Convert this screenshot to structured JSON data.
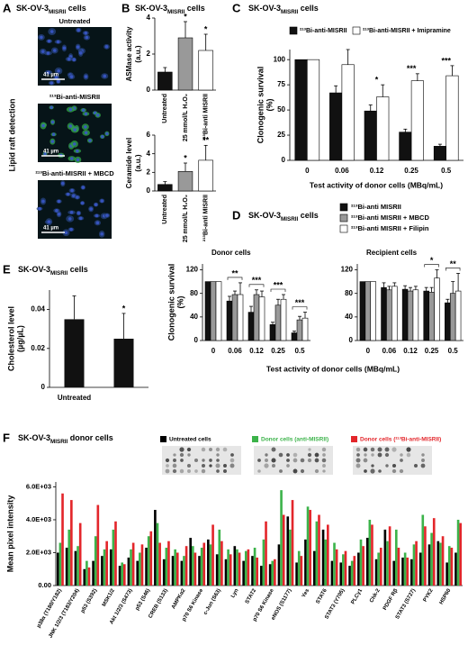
{
  "panels": [
    "A",
    "B",
    "C",
    "D",
    "E",
    "F"
  ],
  "panel_a": {
    "title": [
      {
        "text": "SK-OV-3"
      },
      {
        "text": "MISRII",
        "sub": true
      },
      {
        "text": " cells"
      }
    ],
    "side_label": "Lipid raft detection",
    "images": [
      {
        "label": "Untreated",
        "scale": "41 µm"
      },
      {
        "label": "²¹³Bi-anti-MISRII",
        "scale": "41 µm"
      },
      {
        "label": "²¹³Bi-anti-MISRII + MBCD",
        "scale": "41 µm"
      }
    ]
  },
  "chart_data": [
    {
      "type": "bar",
      "title": [
        {
          "text": "SK-OV-3"
        },
        {
          "text": "MISRII",
          "sub": true
        },
        {
          "text": " cells"
        }
      ],
      "ylabel": [
        "ASMase activity",
        "(a.u.)"
      ],
      "categories": [
        "Untreated",
        "25 mmol/L H₂O₂",
        "²¹³Bi-anti MISRII"
      ],
      "values": [
        1.0,
        2.9,
        2.2
      ],
      "errors": [
        0.25,
        0.9,
        0.9
      ],
      "colors": [
        "#111111",
        "#999999",
        "#ffffff"
      ],
      "ylim": [
        0,
        4
      ],
      "yticks": [
        0,
        2,
        4
      ],
      "significance": [
        null,
        "*",
        "*"
      ]
    },
    {
      "type": "bar",
      "ylabel": [
        "Ceramide level",
        "(a.u.)"
      ],
      "categories": [
        "Untreated",
        "25 mmol/L H₂O₂",
        "²¹³Bi-anti MISRII"
      ],
      "values": [
        0.7,
        2.1,
        3.3
      ],
      "errors": [
        0.3,
        0.9,
        1.6
      ],
      "colors": [
        "#111111",
        "#999999",
        "#ffffff"
      ],
      "ylim": [
        0,
        6
      ],
      "yticks": [
        0,
        2,
        4,
        6
      ],
      "significance": [
        null,
        "*",
        "**"
      ]
    },
    {
      "type": "bar",
      "title": [
        {
          "text": "SK-OV-3"
        },
        {
          "text": "MISRII",
          "sub": true
        },
        {
          "text": " cells"
        }
      ],
      "ylabel": [
        "Clonogenic survival",
        "(%)"
      ],
      "xlabel": "Test activity of donor cells (MBq/mL)",
      "categories": [
        "0",
        "0.06",
        "0.12",
        "0.25",
        "0.5"
      ],
      "series": [
        {
          "name": "²¹³Bi-anti-MISRII",
          "color": "#111111",
          "values": [
            100,
            67,
            49,
            28,
            14
          ],
          "errors": [
            0,
            7,
            6,
            3,
            2
          ]
        },
        {
          "name": "²¹³Bi-anti-MISRII + Imipramine",
          "color": "#ffffff",
          "values": [
            100,
            95,
            63,
            79,
            84
          ],
          "errors": [
            0,
            15,
            12,
            7,
            10
          ]
        }
      ],
      "ylim": [
        0,
        110
      ],
      "yticks": [
        0,
        25,
        50,
        75,
        100
      ],
      "significance": [
        null,
        null,
        "*",
        "***",
        "***"
      ]
    },
    {
      "type": "bar",
      "title": [
        {
          "text": "SK-OV-3"
        },
        {
          "text": "MISRII",
          "sub": true
        },
        {
          "text": " cells"
        }
      ],
      "subtitle": "Donor cells",
      "ylabel": [
        "Clonogenic survival",
        "(%)"
      ],
      "xlabel": "Test activity of donor cells (MBq/mL)",
      "categories": [
        "0",
        "0.06",
        "0.12",
        "0.25",
        "0.5"
      ],
      "series": [
        {
          "name": "²¹³Bi-anti MISRII",
          "color": "#111111",
          "values": [
            100,
            67,
            48,
            27,
            13
          ],
          "errors": [
            0,
            8,
            10,
            4,
            3
          ]
        },
        {
          "name": "²¹³Bi-anti MISRII + MBCD",
          "color": "#999999",
          "values": [
            100,
            78,
            78,
            60,
            35
          ],
          "errors": [
            0,
            6,
            8,
            10,
            6
          ]
        },
        {
          "name": "²¹³Bi-anti MISRII + Filipin",
          "color": "#ffffff",
          "values": [
            100,
            78,
            74,
            70,
            38
          ],
          "errors": [
            0,
            20,
            10,
            8,
            10
          ]
        }
      ],
      "ylim": [
        0,
        130
      ],
      "yticks": [
        0,
        40,
        80,
        120
      ],
      "significance": [
        null,
        "**",
        "***",
        "***",
        "***"
      ]
    },
    {
      "type": "bar",
      "subtitle": "Recipient cells",
      "categories": [
        "0",
        "0.06",
        "0.12",
        "0.25",
        "0.5"
      ],
      "series": [
        {
          "color": "#111111",
          "values": [
            100,
            90,
            87,
            84,
            64
          ],
          "errors": [
            0,
            8,
            6,
            6,
            6
          ]
        },
        {
          "color": "#999999",
          "values": [
            100,
            86,
            84,
            82,
            80
          ],
          "errors": [
            0,
            6,
            6,
            8,
            20
          ]
        },
        {
          "color": "#ffffff",
          "values": [
            100,
            92,
            86,
            106,
            84
          ],
          "errors": [
            0,
            6,
            6,
            14,
            30
          ]
        }
      ],
      "ylim": [
        0,
        130
      ],
      "yticks": [
        0,
        40,
        80,
        120
      ],
      "significance": [
        null,
        null,
        null,
        "*",
        "**"
      ]
    },
    {
      "type": "bar",
      "title": [
        {
          "text": "SK-OV-3"
        },
        {
          "text": "MISRII",
          "sub": true
        },
        {
          "text": " cells"
        }
      ],
      "ylabel": [
        "Cholesterol level",
        "(µg/µL)"
      ],
      "categories": [
        "Untreated",
        null
      ],
      "values": [
        0.035,
        0.025
      ],
      "errors": [
        0.012,
        0.013
      ],
      "colors": [
        "#111111",
        "#111111"
      ],
      "ylim": [
        0,
        0.05
      ],
      "yticks": [
        0,
        0.02,
        0.04
      ],
      "significance": [
        null,
        "*"
      ]
    },
    {
      "type": "bar",
      "title": [
        {
          "text": "SK-OV-3"
        },
        {
          "text": "MISRII",
          "sub": true
        },
        {
          "text": " donor cells"
        }
      ],
      "ylabel": [
        "Mean pixel intensity"
      ],
      "categories": [
        "p38α (T180/Y182)",
        null,
        "JNK 1/2/3 (T183/Y204)",
        null,
        "p53 (S392)",
        null,
        "MSK1/2",
        null,
        "Akt 1/2/3 (S473)",
        null,
        "p53 (S46)",
        null,
        "CREB (S133)",
        null,
        "AMPKα2",
        null,
        "p70 S6 Kinase",
        null,
        "c-Jun (S63)",
        null,
        "Lyn",
        null,
        "STAT2",
        null,
        "p70 S6 Kinase",
        null,
        "eNOS (S1177)",
        null,
        "Yes",
        null,
        "STAT6",
        null,
        "STAT3 (Y705)",
        null,
        "PLCγ1",
        null,
        "Chk-2",
        null,
        "PDGF Rβ",
        null,
        "STAT3 (S727)",
        null,
        "PYK2",
        null,
        "HSP60",
        null
      ],
      "series": [
        {
          "name": "Untreated cells",
          "color": "#000000",
          "values": [
            2000,
            2300,
            2100,
            1000,
            1500,
            1800,
            2200,
            1200,
            1700,
            1500,
            2300,
            4600,
            1600,
            1800,
            1500,
            2900,
            1800,
            2800,
            1900,
            1600,
            2400,
            1500,
            1800,
            1200,
            1300,
            2500,
            4200,
            1400,
            2800,
            2100,
            3400,
            1500,
            1400,
            1200,
            2000,
            2900,
            1600,
            3400,
            1500,
            1700,
            1600,
            2000,
            2500,
            2700,
            1400,
            2000
          ]
        },
        {
          "name": "Donor cells (anti-MISRII)",
          "color": "#3cb34a",
          "values": [
            2600,
            3400,
            2400,
            1500,
            3000,
            2200,
            3400,
            1400,
            2200,
            2000,
            3000,
            3800,
            2300,
            2200,
            1800,
            2400,
            2300,
            2500,
            3400,
            2200,
            2200,
            2100,
            2300,
            2800,
            1500,
            5800,
            3400,
            2100,
            4800,
            3900,
            2800,
            2600,
            1900,
            1500,
            2800,
            4000,
            2000,
            2700,
            3400,
            2000,
            2500,
            4300,
            3200,
            2600,
            2400,
            4000
          ]
        },
        {
          "name": "Donor cells (²¹³Bi-anti-MISRII)",
          "color": "#e3262b",
          "values": [
            5600,
            5200,
            3800,
            1100,
            4900,
            2700,
            3900,
            1300,
            2600,
            2500,
            3300,
            2600,
            2700,
            2000,
            2400,
            2000,
            2600,
            3700,
            2700,
            1900,
            2000,
            2200,
            1700,
            3900,
            1600,
            4300,
            5200,
            1800,
            4600,
            4300,
            3700,
            2200,
            2100,
            1800,
            2400,
            3700,
            2300,
            3600,
            2300,
            1700,
            2700,
            3600,
            4100,
            3000,
            2300,
            3800
          ]
        }
      ],
      "ylim": [
        0,
        6300
      ],
      "yticks": [
        {
          "value": 0,
          "label": "0.00"
        },
        {
          "value": 2000,
          "label": "2.0E+03"
        },
        {
          "value": 4000,
          "label": "4.0E+03"
        },
        {
          "value": 6000,
          "label": "6.0E+03"
        }
      ]
    }
  ]
}
